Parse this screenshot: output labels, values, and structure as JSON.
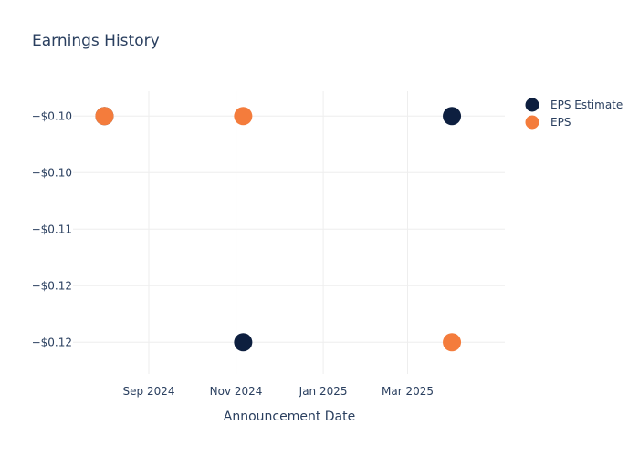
{
  "chart_data": {
    "type": "scatter",
    "title": "Earnings History",
    "xlabel": "Announcement Date",
    "ylabel": "",
    "x_ticks": [
      {
        "date": "2024-09-01",
        "label": "Sep 2024"
      },
      {
        "date": "2024-11-01",
        "label": "Nov 2024"
      },
      {
        "date": "2025-01-01",
        "label": "Jan 2025"
      },
      {
        "date": "2025-03-01",
        "label": "Mar 2025"
      }
    ],
    "y_ticks": [
      {
        "value": -0.1,
        "label": "−$0.10"
      },
      {
        "value": -0.105,
        "label": "−$0.10"
      },
      {
        "value": -0.11,
        "label": "−$0.11"
      },
      {
        "value": -0.115,
        "label": "−$0.12"
      },
      {
        "value": -0.12,
        "label": "−$0.12"
      }
    ],
    "xlim": [
      "2024-07-10",
      "2025-05-08"
    ],
    "ylim": [
      -0.1228,
      -0.0978
    ],
    "grid": true,
    "legend_position": "top-right",
    "series": [
      {
        "name": "EPS Estimate",
        "color": "#0d1f3f",
        "points": [
          {
            "x": "2024-08-01",
            "y": -0.1
          },
          {
            "x": "2024-11-06",
            "y": -0.12
          },
          {
            "x": "2025-04-01",
            "y": -0.1
          }
        ]
      },
      {
        "name": "EPS",
        "color": "#f47c3c",
        "points": [
          {
            "x": "2024-08-01",
            "y": -0.1
          },
          {
            "x": "2024-11-06",
            "y": -0.1
          },
          {
            "x": "2025-04-01",
            "y": -0.12
          }
        ]
      }
    ]
  }
}
